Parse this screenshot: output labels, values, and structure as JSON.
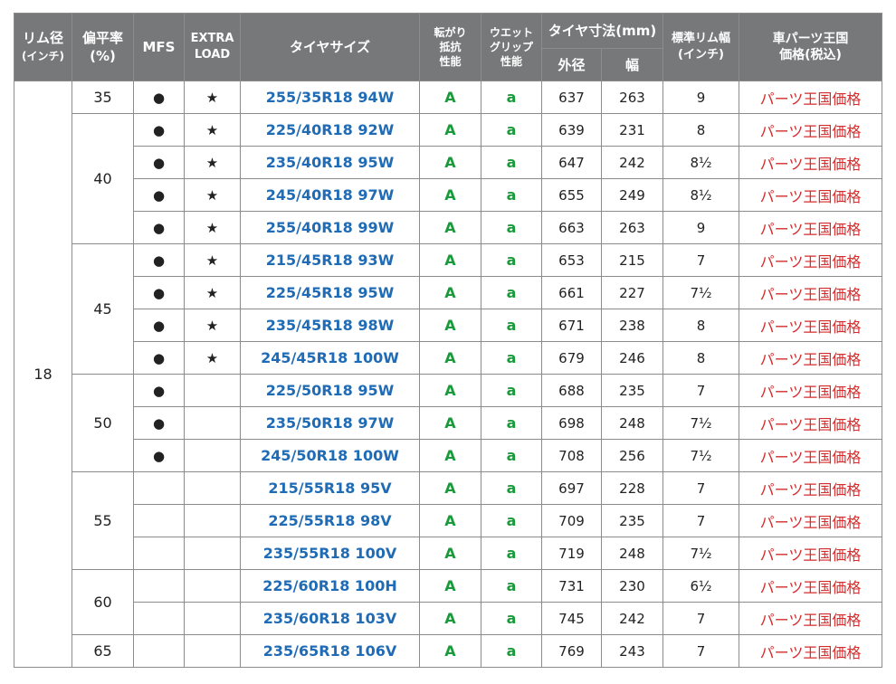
{
  "header": {
    "rim_line1": "リム径",
    "rim_line2": "(インチ)",
    "aspect_line1": "偏平率",
    "aspect_line2": "(%)",
    "mfs": "MFS",
    "xl_line1": "EXTRA",
    "xl_line2": "LOAD",
    "size": "タイヤサイズ",
    "roll_line1": "転がり",
    "roll_line2": "抵抗",
    "roll_line3": "性能",
    "wet_line1": "ウエット",
    "wet_line2": "グリップ",
    "wet_line3": "性能",
    "dims": "タイヤ寸法(mm)",
    "outer": "外径",
    "width": "幅",
    "stdrim_line1": "標準リム幅",
    "stdrim_line2": "(インチ)",
    "price_line1": "車パーツ王国",
    "price_line2": "価格(税込)"
  },
  "rim": "18",
  "aspect_groups": [
    "35",
    "40",
    "45",
    "50",
    "55",
    "60",
    "65"
  ],
  "rows": [
    {
      "mfs": "●",
      "xl": "★",
      "size": "255/35R18 94W",
      "roll": "A",
      "wet": "a",
      "outer": "637",
      "width": "263",
      "rim": "9",
      "price": "パーツ王国価格"
    },
    {
      "mfs": "●",
      "xl": "★",
      "size": "225/40R18 92W",
      "roll": "A",
      "wet": "a",
      "outer": "639",
      "width": "231",
      "rim": "8",
      "price": "パーツ王国価格"
    },
    {
      "mfs": "●",
      "xl": "★",
      "size": "235/40R18 95W",
      "roll": "A",
      "wet": "a",
      "outer": "647",
      "width": "242",
      "rim": "8½",
      "price": "パーツ王国価格"
    },
    {
      "mfs": "●",
      "xl": "★",
      "size": "245/40R18 97W",
      "roll": "A",
      "wet": "a",
      "outer": "655",
      "width": "249",
      "rim": "8½",
      "price": "パーツ王国価格"
    },
    {
      "mfs": "●",
      "xl": "★",
      "size": "255/40R18 99W",
      "roll": "A",
      "wet": "a",
      "outer": "663",
      "width": "263",
      "rim": "9",
      "price": "パーツ王国価格"
    },
    {
      "mfs": "●",
      "xl": "★",
      "size": "215/45R18 93W",
      "roll": "A",
      "wet": "a",
      "outer": "653",
      "width": "215",
      "rim": "7",
      "price": "パーツ王国価格"
    },
    {
      "mfs": "●",
      "xl": "★",
      "size": "225/45R18 95W",
      "roll": "A",
      "wet": "a",
      "outer": "661",
      "width": "227",
      "rim": "7½",
      "price": "パーツ王国価格"
    },
    {
      "mfs": "●",
      "xl": "★",
      "size": "235/45R18 98W",
      "roll": "A",
      "wet": "a",
      "outer": "671",
      "width": "238",
      "rim": "8",
      "price": "パーツ王国価格"
    },
    {
      "mfs": "●",
      "xl": "★",
      "size": "245/45R18 100W",
      "roll": "A",
      "wet": "a",
      "outer": "679",
      "width": "246",
      "rim": "8",
      "price": "パーツ王国価格"
    },
    {
      "mfs": "●",
      "xl": "",
      "size": "225/50R18 95W",
      "roll": "A",
      "wet": "a",
      "outer": "688",
      "width": "235",
      "rim": "7",
      "price": "パーツ王国価格"
    },
    {
      "mfs": "●",
      "xl": "",
      "size": "235/50R18 97W",
      "roll": "A",
      "wet": "a",
      "outer": "698",
      "width": "248",
      "rim": "7½",
      "price": "パーツ王国価格"
    },
    {
      "mfs": "●",
      "xl": "",
      "size": "245/50R18 100W",
      "roll": "A",
      "wet": "a",
      "outer": "708",
      "width": "256",
      "rim": "7½",
      "price": "パーツ王国価格"
    },
    {
      "mfs": "",
      "xl": "",
      "size": "215/55R18 95V",
      "roll": "A",
      "wet": "a",
      "outer": "697",
      "width": "228",
      "rim": "7",
      "price": "パーツ王国価格"
    },
    {
      "mfs": "",
      "xl": "",
      "size": "225/55R18 98V",
      "roll": "A",
      "wet": "a",
      "outer": "709",
      "width": "235",
      "rim": "7",
      "price": "パーツ王国価格"
    },
    {
      "mfs": "",
      "xl": "",
      "size": "235/55R18 100V",
      "roll": "A",
      "wet": "a",
      "outer": "719",
      "width": "248",
      "rim": "7½",
      "price": "パーツ王国価格"
    },
    {
      "mfs": "",
      "xl": "",
      "size": "225/60R18 100H",
      "roll": "A",
      "wet": "a",
      "outer": "731",
      "width": "230",
      "rim": "6½",
      "price": "パーツ王国価格"
    },
    {
      "mfs": "",
      "xl": "",
      "size": "235/60R18 103V",
      "roll": "A",
      "wet": "a",
      "outer": "745",
      "width": "242",
      "rim": "7",
      "price": "パーツ王国価格"
    },
    {
      "mfs": "",
      "xl": "",
      "size": "235/65R18 106V",
      "roll": "A",
      "wet": "a",
      "outer": "769",
      "width": "243",
      "rim": "7",
      "price": "パーツ王国価格"
    }
  ],
  "colors": {
    "header_bg": "#76787a",
    "size_text": "#1f6bb5",
    "grade_text": "#1a9a3a",
    "price_text": "#d62b2b"
  }
}
